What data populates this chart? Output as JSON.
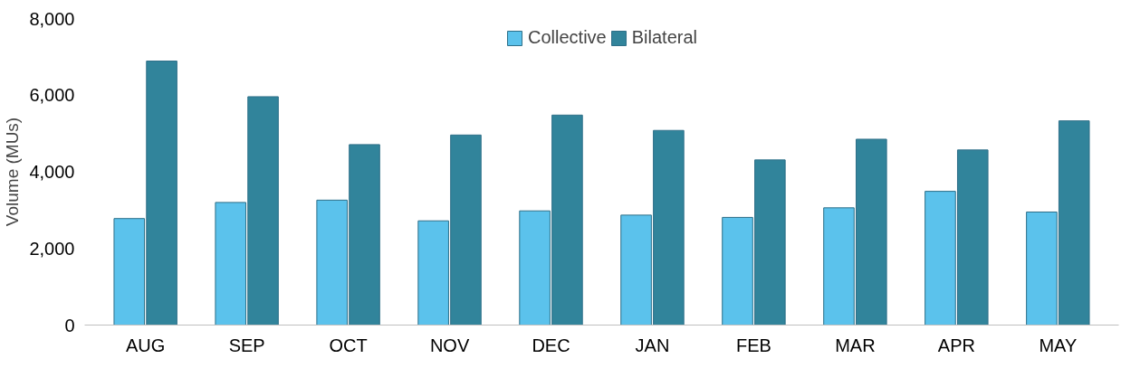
{
  "chart_data": {
    "type": "bar",
    "ylabel": "Volume (MUs)",
    "categories": [
      "AUG",
      "SEP",
      "OCT",
      "NOV",
      "DEC",
      "JAN",
      "FEB",
      "MAR",
      "APR",
      "MAY"
    ],
    "series": [
      {
        "name": "Collective",
        "color": "#5bc2ec",
        "values": [
          2780,
          3200,
          3260,
          2720,
          2980,
          2870,
          2810,
          3060,
          3490,
          2950
        ]
      },
      {
        "name": "Bilateral",
        "color": "#31849b",
        "values": [
          6890,
          5960,
          4710,
          4960,
          5480,
          5080,
          4310,
          4850,
          4570,
          5330
        ]
      }
    ],
    "ylim": [
      0,
      8000
    ],
    "yticks": [
      {
        "value": 0,
        "label": "0"
      },
      {
        "value": 2000,
        "label": "2,000"
      },
      {
        "value": 4000,
        "label": "4,000"
      },
      {
        "value": 6000,
        "label": "6,000"
      },
      {
        "value": 8000,
        "label": "8,000"
      }
    ],
    "grid": false,
    "legend": "top"
  }
}
